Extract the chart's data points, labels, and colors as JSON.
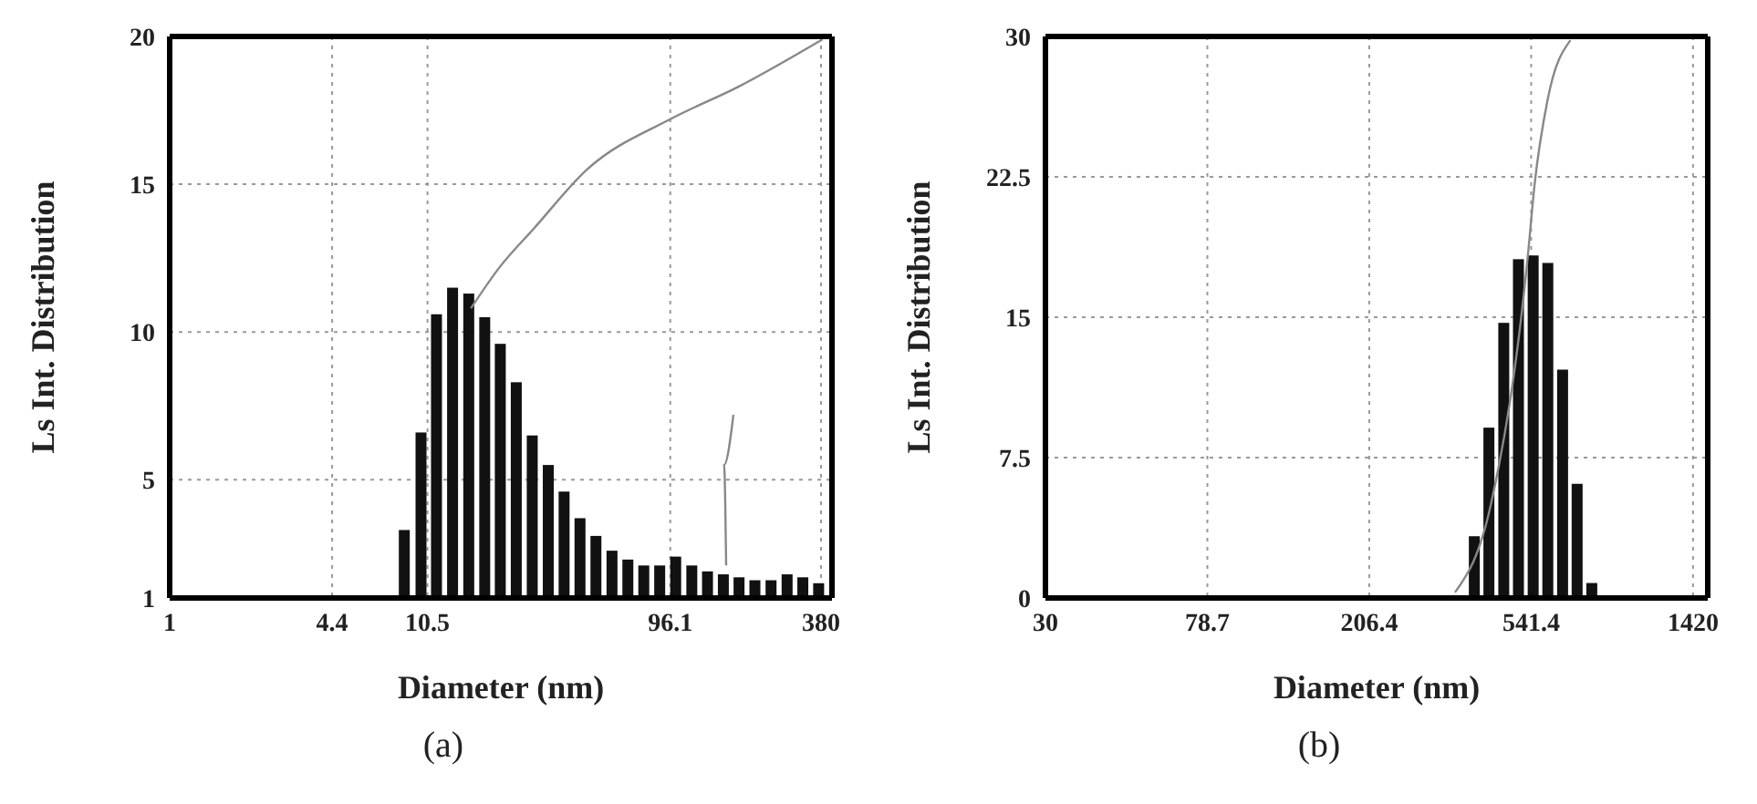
{
  "chart_data": [
    {
      "type": "bar",
      "log": "x",
      "xlabel": "Diameter (nm)",
      "ylabel": "Ls Int. Distribution",
      "annotations": [
        "(a)"
      ],
      "grid": true,
      "xlim": [
        1,
        420
      ],
      "xticks": [
        1,
        4.4,
        10.5,
        96.1,
        380
      ],
      "ylim": [
        1,
        20
      ],
      "yticks": [
        1,
        5,
        10,
        15,
        20
      ],
      "series": [
        {
          "color": "#111111",
          "x": [
            8.5,
            9.9,
            11.4,
            13.2,
            15.3,
            17.7,
            20.4,
            23.6,
            27.3,
            31.6,
            36.5,
            42.2,
            48.8,
            56.5,
            65.3,
            75.5,
            87.3,
            101,
            117,
            135,
            156,
            180,
            208,
            241,
            279,
            322,
            372
          ],
          "values": [
            3.3,
            6.6,
            10.6,
            11.5,
            11.3,
            10.5,
            9.6,
            8.3,
            6.5,
            5.5,
            4.6,
            3.7,
            3.1,
            2.6,
            2.3,
            2.1,
            2.1,
            2.4,
            2.1,
            1.9,
            1.8,
            1.7,
            1.6,
            1.6,
            1.8,
            1.7,
            1.5
          ]
        },
        {
          "type": "line",
          "color": "#888888",
          "x": [
            15.6,
            20.3,
            27.7,
            45,
            96,
            179,
            385
          ],
          "values": [
            10.8,
            12.2,
            13.5,
            15.5,
            17.2,
            18.3,
            19.9
          ]
        },
        {
          "type": "line",
          "color": "#888888",
          "x": [
            171,
            157,
            160
          ],
          "values": [
            7.2,
            5.5,
            2.1
          ]
        }
      ]
    },
    {
      "type": "bar",
      "log": "x",
      "xlabel": "Diameter (nm)",
      "ylabel": "Ls Int. Distribution",
      "annotations": [
        "(b)"
      ],
      "grid": true,
      "xlim": [
        30,
        1550
      ],
      "xticks": [
        30,
        78.7,
        206.4,
        541.4,
        1420
      ],
      "ylim": [
        0,
        30
      ],
      "yticks": [
        0,
        7.5,
        15,
        22.5,
        30
      ],
      "series": [
        {
          "color": "#111111",
          "x": [
            386,
            421,
            460,
            502,
            548,
            598,
            653,
            712,
            777
          ],
          "values": [
            3.3,
            9.1,
            14.7,
            18.1,
            18.3,
            17.9,
            12.2,
            6.1,
            0.8
          ]
        },
        {
          "type": "line",
          "color": "#888888",
          "x": [
            344,
            426,
            531,
            552,
            597,
            684
          ],
          "values": [
            0.3,
            5,
            18.3,
            22,
            26.6,
            29.8
          ]
        }
      ]
    }
  ]
}
